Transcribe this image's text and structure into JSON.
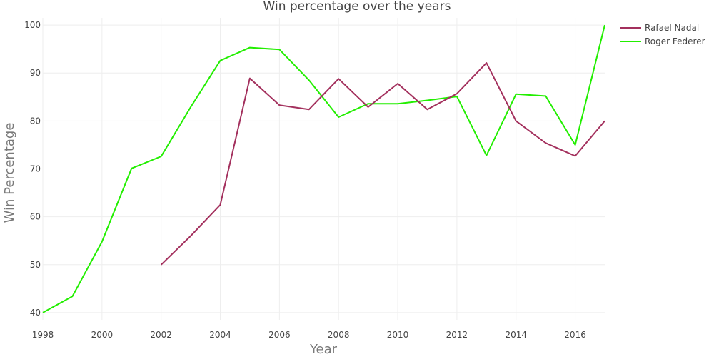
{
  "chart_data": {
    "type": "line",
    "title": "Win percentage over the years",
    "xlabel": "Year",
    "ylabel": "Win Percentage",
    "xlim": [
      1998,
      2017
    ],
    "ylim": [
      38.5,
      101.5
    ],
    "grid": true,
    "legend_position": "top-right",
    "x_ticks": [
      1998,
      2000,
      2002,
      2004,
      2006,
      2008,
      2010,
      2012,
      2014,
      2016
    ],
    "x_tick_labels": [
      "1998",
      "2000",
      "2002",
      "2004",
      "2006",
      "2008",
      "2010",
      "2012",
      "2014",
      "2016"
    ],
    "y_ticks": [
      40,
      50,
      60,
      70,
      80,
      90,
      100
    ],
    "y_tick_labels": [
      "40",
      "50",
      "60",
      "70",
      "80",
      "90",
      "100"
    ],
    "series": [
      {
        "name": "Rafael Nadal",
        "color": "#a3305d",
        "x": [
          2002,
          2003,
          2004,
          2005,
          2006,
          2007,
          2008,
          2009,
          2010,
          2011,
          2012,
          2013,
          2014,
          2015,
          2016,
          2017
        ],
        "values": [
          50.0,
          56.0,
          62.5,
          88.9,
          83.3,
          82.4,
          88.8,
          82.9,
          87.8,
          82.4,
          85.7,
          92.1,
          80.0,
          75.4,
          72.7,
          80.0
        ]
      },
      {
        "name": "Roger Federer",
        "color": "#22ee00",
        "x": [
          1998,
          1999,
          2000,
          2001,
          2002,
          2003,
          2004,
          2005,
          2006,
          2007,
          2008,
          2009,
          2010,
          2011,
          2012,
          2013,
          2014,
          2015,
          2016,
          2017
        ],
        "values": [
          40.0,
          43.4,
          54.8,
          70.1,
          72.6,
          82.9,
          92.6,
          95.3,
          94.9,
          88.5,
          80.8,
          83.6,
          83.6,
          84.3,
          85.1,
          72.8,
          85.6,
          85.2,
          75.0,
          100.0
        ]
      }
    ]
  }
}
